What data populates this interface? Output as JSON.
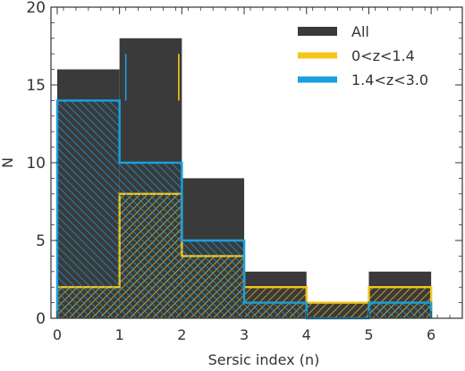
{
  "chart_data": {
    "type": "bar",
    "title": "",
    "xlabel": "Sersic index (n)",
    "ylabel": "N",
    "xlim": [
      -0.1,
      6.5
    ],
    "ylim": [
      0,
      20
    ],
    "x_ticks": [
      0,
      1,
      2,
      3,
      4,
      5,
      6
    ],
    "y_ticks": [
      0,
      5,
      10,
      15,
      20
    ],
    "bin_edges": [
      0,
      1,
      2,
      3,
      4,
      5,
      6
    ],
    "legend_placement": "top-right",
    "grid": false,
    "series": [
      {
        "name": "All",
        "values": [
          16,
          18,
          9,
          3,
          1,
          3
        ],
        "color": "#3a3a3a",
        "style": "filled"
      },
      {
        "name": "0<z<1.4",
        "values": [
          2,
          8,
          4,
          2,
          1,
          2
        ],
        "color": "#f5c518",
        "style": "hatched-step"
      },
      {
        "name": "1.4<z<3.0",
        "values": [
          14,
          10,
          5,
          1,
          0,
          1
        ],
        "color": "#1aa0e0",
        "style": "hatched-step"
      }
    ],
    "error_bars": [
      {
        "series": "1.4<z<3.0",
        "x": 1.1,
        "low": 14,
        "high": 17
      },
      {
        "series": "0<z<1.4",
        "x": 1.95,
        "low": 14,
        "high": 17
      }
    ]
  }
}
